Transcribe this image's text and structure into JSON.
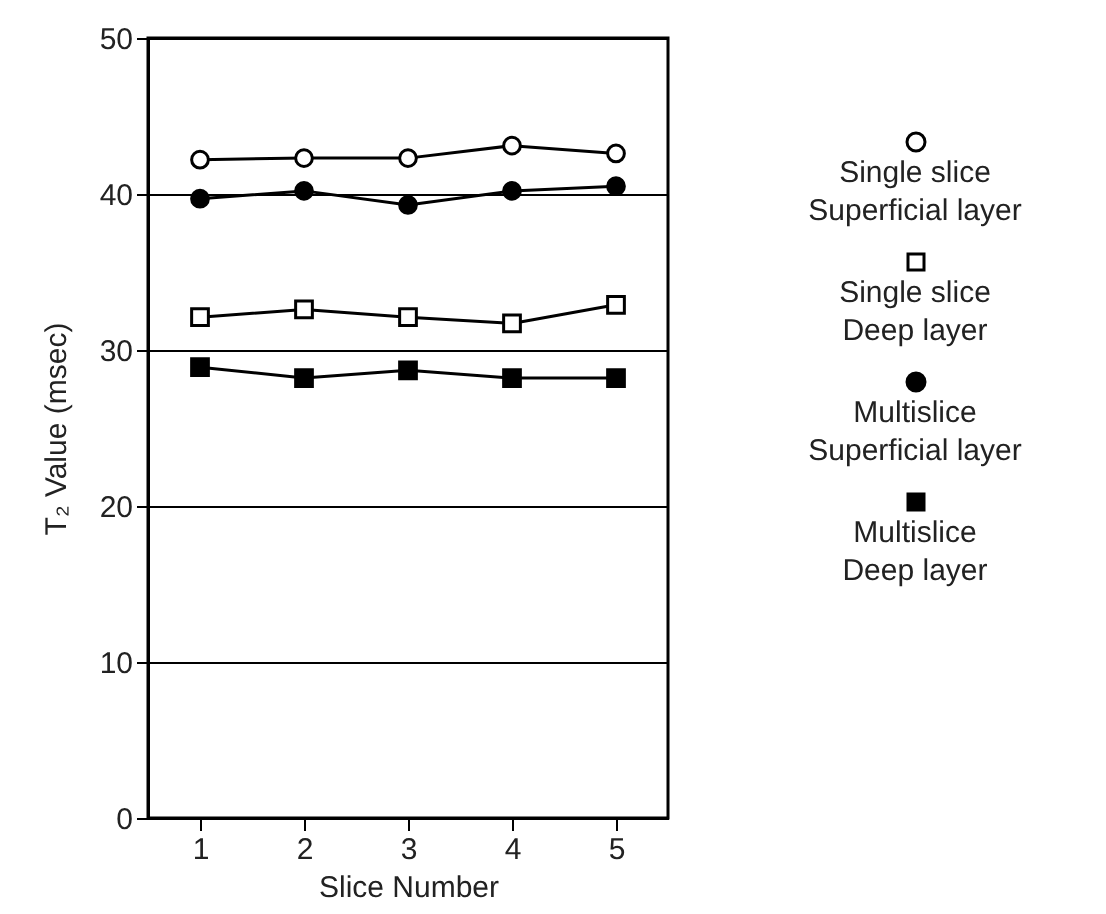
{
  "chart_data": {
    "type": "line",
    "xlabel": "Slice Number",
    "ylabel": "T₂ Value (msec)",
    "x": [
      1,
      2,
      3,
      4,
      5
    ],
    "xlim": [
      0.5,
      5.5
    ],
    "xticks": [
      1,
      2,
      3,
      4,
      5
    ],
    "ylim": [
      0,
      50
    ],
    "yticks": [
      0,
      10,
      20,
      30,
      40,
      50
    ],
    "grid": "y",
    "legend": "right",
    "line_style": "solid",
    "series": [
      {
        "name": "Single slice Superficial layer",
        "color": "#000000",
        "marker": "circle",
        "values": [
          42.2,
          42.3,
          42.3,
          43.1,
          42.6
        ]
      },
      {
        "name": "Single slice Deep layer",
        "color": "#000000",
        "marker": "square",
        "values": [
          32.1,
          32.6,
          32.1,
          31.7,
          32.9
        ]
      },
      {
        "name": "Multislice Superficial layer",
        "color": "#000000",
        "marker": "circle",
        "values": [
          39.7,
          40.2,
          39.3,
          40.2,
          40.5
        ]
      },
      {
        "name": "Multislice Deep layer",
        "color": "#000000",
        "marker": "square",
        "values": [
          28.9,
          28.2,
          28.7,
          28.2,
          28.2
        ]
      }
    ]
  }
}
